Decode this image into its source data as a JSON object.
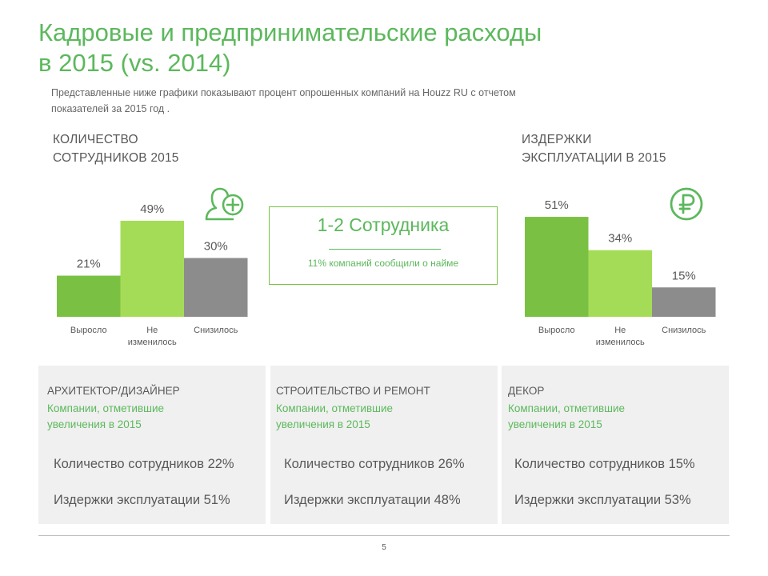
{
  "header": {
    "title_line1": "Кадровые и предпринимательские расходы",
    "title_line2": "в 2015 (vs. 2014)",
    "subtitle_line1": "Представленные ниже графики показывают процент опрошенных компаний на Houzz RU с отчетом",
    "subtitle_line2": "показателей за 2015 год ."
  },
  "left_section": {
    "title_line1": "КОЛИЧЕСТВО",
    "title_line2": "СОТРУДНИКОВ 2015",
    "icon": "person-add-icon"
  },
  "right_section": {
    "title_line1": "ИЗДЕРЖКИ",
    "title_line2": "ЭКСПЛУАТАЦИИ В 2015",
    "icon": "ruble-icon"
  },
  "center": {
    "headline": "1-2 Сотрудника",
    "note": "11% компаний сообщили о найме"
  },
  "chart_data": [
    {
      "type": "bar",
      "categories": [
        "Выросло",
        "Не изменилось",
        "Снизилось"
      ],
      "category_lines": [
        [
          "Выросло"
        ],
        [
          "Не",
          "изменилось"
        ],
        [
          "Снизилось"
        ]
      ],
      "values": [
        21,
        49,
        30
      ],
      "data_labels": [
        "21%",
        "49%",
        "30%"
      ],
      "colors": [
        "#7ac143",
        "#a5dc57",
        "#8c8c8c"
      ],
      "ylim": [
        0,
        50
      ],
      "grid": false
    },
    {
      "type": "bar",
      "categories": [
        "Выросло",
        "Не изменилось",
        "Снизилось"
      ],
      "category_lines": [
        [
          "Выросло"
        ],
        [
          "Не",
          "изменилось"
        ],
        [
          "Снизилось"
        ]
      ],
      "values": [
        51,
        34,
        15
      ],
      "data_labels": [
        "51%",
        "34%",
        "15%"
      ],
      "colors": [
        "#7ac143",
        "#a5dc57",
        "#8c8c8c"
      ],
      "ylim": [
        0,
        50
      ],
      "grid": false
    }
  ],
  "panels": [
    {
      "heading": "АРХИТЕКТОР/ДИЗАЙНЕР",
      "note_line1": "Компании,  отметившие",
      "note_line2": "увеличения  в 2015",
      "stat1": "Количество сотрудников  22%",
      "stat2": "Издержки эксплуатации   51%"
    },
    {
      "heading": "СТРОИТЕЛЬСТВО  И РЕМОНТ",
      "note_line1": "Компании,  отметившие",
      "note_line2": "увеличения  в 2015",
      "stat1": "Количество сотрудников  26%",
      "stat2": "Издержки эксплуатации   48%"
    },
    {
      "heading": "ДЕКОР",
      "note_line1": "Компании,  отметившие",
      "note_line2": "увеличения  в 2015",
      "stat1": "Количество сотрудников  15%",
      "stat2": "Издержки эксплуатации   53%"
    }
  ],
  "footer": {
    "page_number": "5"
  }
}
